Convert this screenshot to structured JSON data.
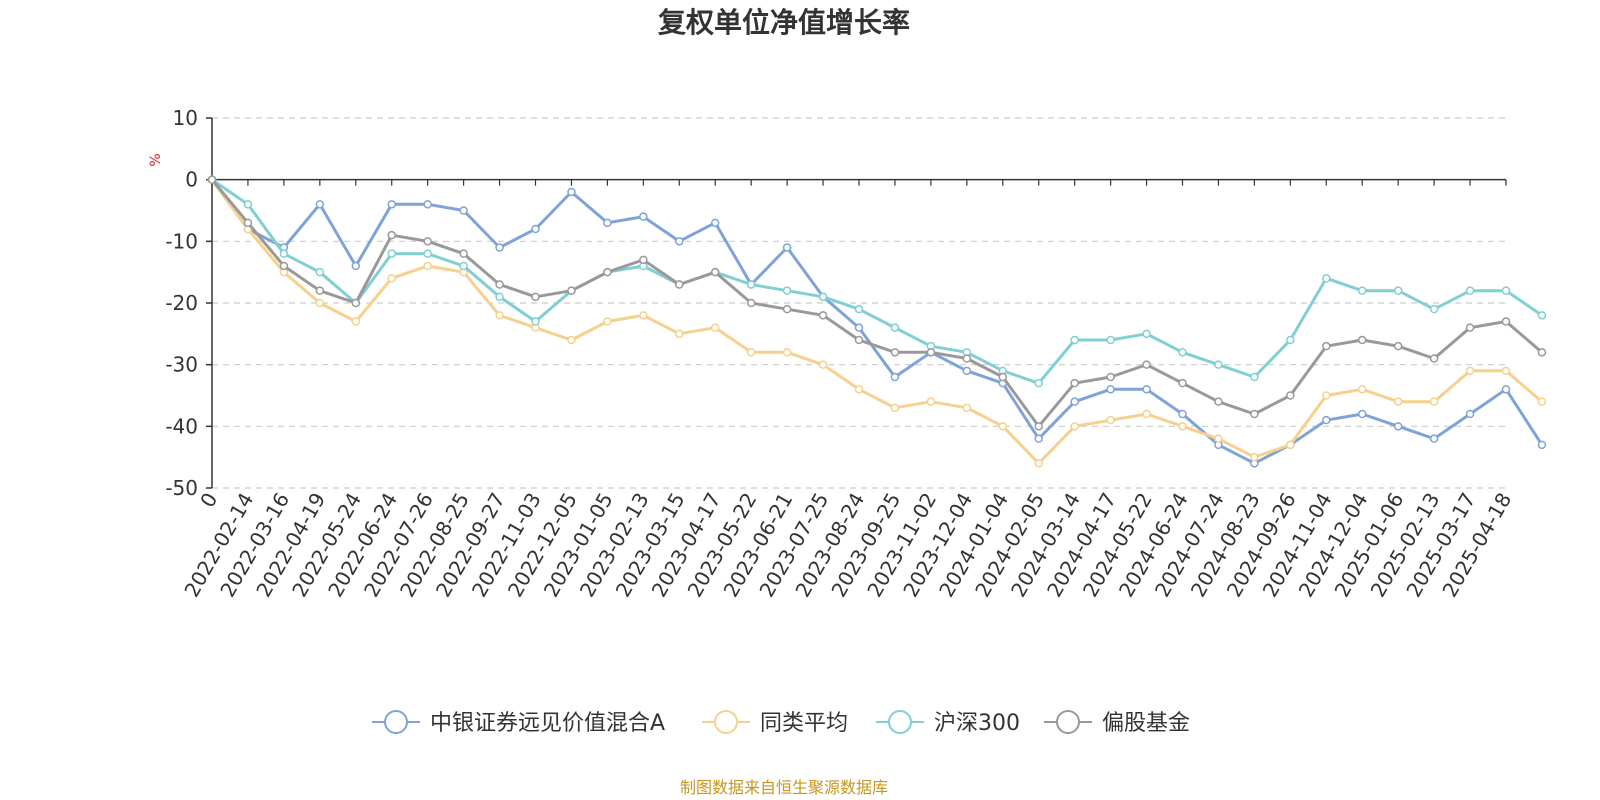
{
  "chart_data": {
    "type": "line",
    "title": "复权单位净值增长率",
    "ylabel": "%",
    "xlabel": "",
    "ylim": [
      -50,
      10
    ],
    "y_ticks": [
      10,
      0,
      -10,
      -20,
      -30,
      -40,
      -50
    ],
    "grid": true,
    "legend_position": "bottom",
    "x_ticks": [
      "0",
      "2022-02-14",
      "2022-03-16",
      "2022-04-19",
      "2022-05-24",
      "2022-06-24",
      "2022-07-26",
      "2022-08-25",
      "2022-09-27",
      "2022-11-03",
      "2022-12-05",
      "2023-01-05",
      "2023-02-13",
      "2023-03-15",
      "2023-04-17",
      "2023-05-22",
      "2023-06-21",
      "2023-07-25",
      "2023-08-24",
      "2023-09-25",
      "2023-11-02",
      "2023-12-04",
      "2024-01-04",
      "2024-02-05",
      "2024-03-14",
      "2024-04-17",
      "2024-05-22",
      "2024-06-24",
      "2024-07-24",
      "2024-08-23",
      "2024-09-26",
      "2024-11-04",
      "2024-12-04",
      "2025-01-06",
      "2025-02-13",
      "2025-03-17",
      "2025-04-18"
    ],
    "series": [
      {
        "name": "中银证券远见价值混合A",
        "color": "#7fa3d6",
        "values": [
          0,
          -8,
          -11,
          -4,
          -14,
          -4,
          -4,
          -5,
          -11,
          -8,
          -2,
          -7,
          -6,
          -10,
          -7,
          -17,
          -11,
          -19,
          -24,
          -32,
          -28,
          -31,
          -33,
          -42,
          -36,
          -34,
          -34,
          -38,
          -43,
          -46,
          -43,
          -39,
          -38,
          -40,
          -42,
          -38,
          -34,
          -43
        ]
      },
      {
        "name": "同类平均",
        "color": "#f6d08c",
        "values": [
          0,
          -8,
          -15,
          -20,
          -23,
          -16,
          -14,
          -15,
          -22,
          -24,
          -26,
          -23,
          -22,
          -25,
          -24,
          -28,
          -28,
          -30,
          -34,
          -37,
          -36,
          -37,
          -40,
          -46,
          -40,
          -39,
          -38,
          -40,
          -42,
          -45,
          -43,
          -35,
          -34,
          -36,
          -36,
          -31,
          -31,
          -36
        ]
      },
      {
        "name": "沪深300",
        "color": "#7fcfd3",
        "values": [
          0,
          -4,
          -12,
          -15,
          -20,
          -12,
          -12,
          -14,
          -19,
          -23,
          -18,
          -15,
          -14,
          -17,
          -15,
          -17,
          -18,
          -19,
          -21,
          -24,
          -27,
          -28,
          -31,
          -33,
          -26,
          -26,
          -25,
          -28,
          -30,
          -32,
          -26,
          -16,
          -18,
          -18,
          -21,
          -18,
          -18,
          -22
        ]
      },
      {
        "name": "偏股基金",
        "color": "#999999",
        "values": [
          0,
          -7,
          -14,
          -18,
          -20,
          -9,
          -10,
          -12,
          -17,
          -19,
          -18,
          -15,
          -13,
          -17,
          -15,
          -20,
          -21,
          -22,
          -26,
          -28,
          -28,
          -29,
          -32,
          -40,
          -33,
          -32,
          -30,
          -33,
          -36,
          -38,
          -35,
          -27,
          -26,
          -27,
          -29,
          -24,
          -23,
          -28
        ]
      }
    ]
  },
  "legend_items": [
    "中银证券远见价值混合A",
    "同类平均",
    "沪深300",
    "偏股基金"
  ],
  "source_text": "制图数据来自恒生聚源数据库"
}
